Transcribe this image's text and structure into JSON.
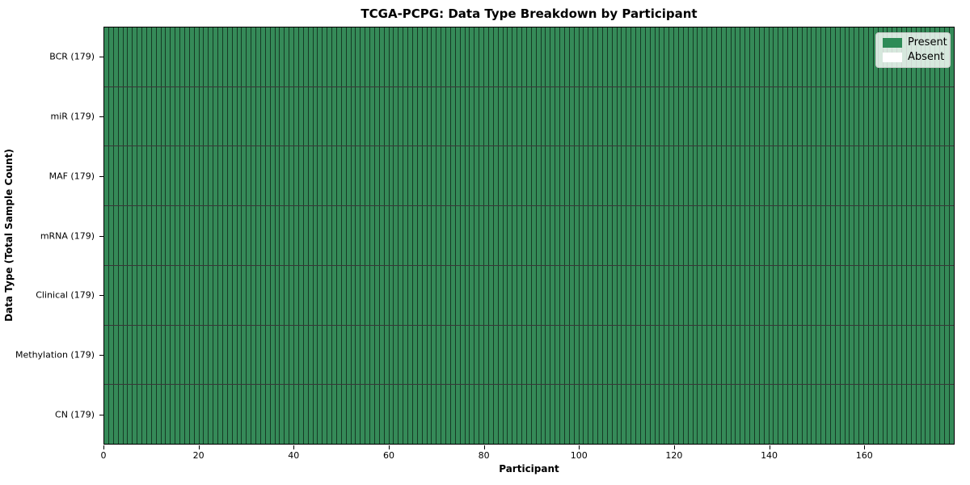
{
  "chart_data": {
    "type": "heatmap",
    "title": "TCGA-PCPG: Data Type Breakdown by Participant",
    "xlabel": "Participant",
    "ylabel": "Data Type (Total Sample Count)",
    "n_participants": 179,
    "xlim": [
      0,
      179
    ],
    "x_ticks": [
      0,
      20,
      40,
      60,
      80,
      100,
      120,
      140,
      160
    ],
    "rows": [
      {
        "label": "BCR (179)",
        "data_type": "BCR",
        "total_sample_count": 179,
        "present_count": 179,
        "absent_count": 0
      },
      {
        "label": "miR (179)",
        "data_type": "miR",
        "total_sample_count": 179,
        "present_count": 179,
        "absent_count": 0
      },
      {
        "label": "MAF (179)",
        "data_type": "MAF",
        "total_sample_count": 179,
        "present_count": 179,
        "absent_count": 0
      },
      {
        "label": "mRNA (179)",
        "data_type": "mRNA",
        "total_sample_count": 179,
        "present_count": 179,
        "absent_count": 0
      },
      {
        "label": "Clinical (179)",
        "data_type": "Clinical",
        "total_sample_count": 179,
        "present_count": 179,
        "absent_count": 0
      },
      {
        "label": "Methylation (179)",
        "data_type": "Methylation",
        "total_sample_count": 179,
        "present_count": 179,
        "absent_count": 0
      },
      {
        "label": "CN (179)",
        "data_type": "CN",
        "total_sample_count": 179,
        "present_count": 179,
        "absent_count": 0
      }
    ],
    "colors": {
      "present": "#358a58",
      "absent": "#ffffff",
      "legend_present_swatch": "#2e8b57",
      "legend_absent_swatch": "#ffffff"
    },
    "legend": {
      "position": "upper right",
      "items": [
        {
          "label": "Present"
        },
        {
          "label": "Absent"
        }
      ]
    },
    "grid": true
  }
}
